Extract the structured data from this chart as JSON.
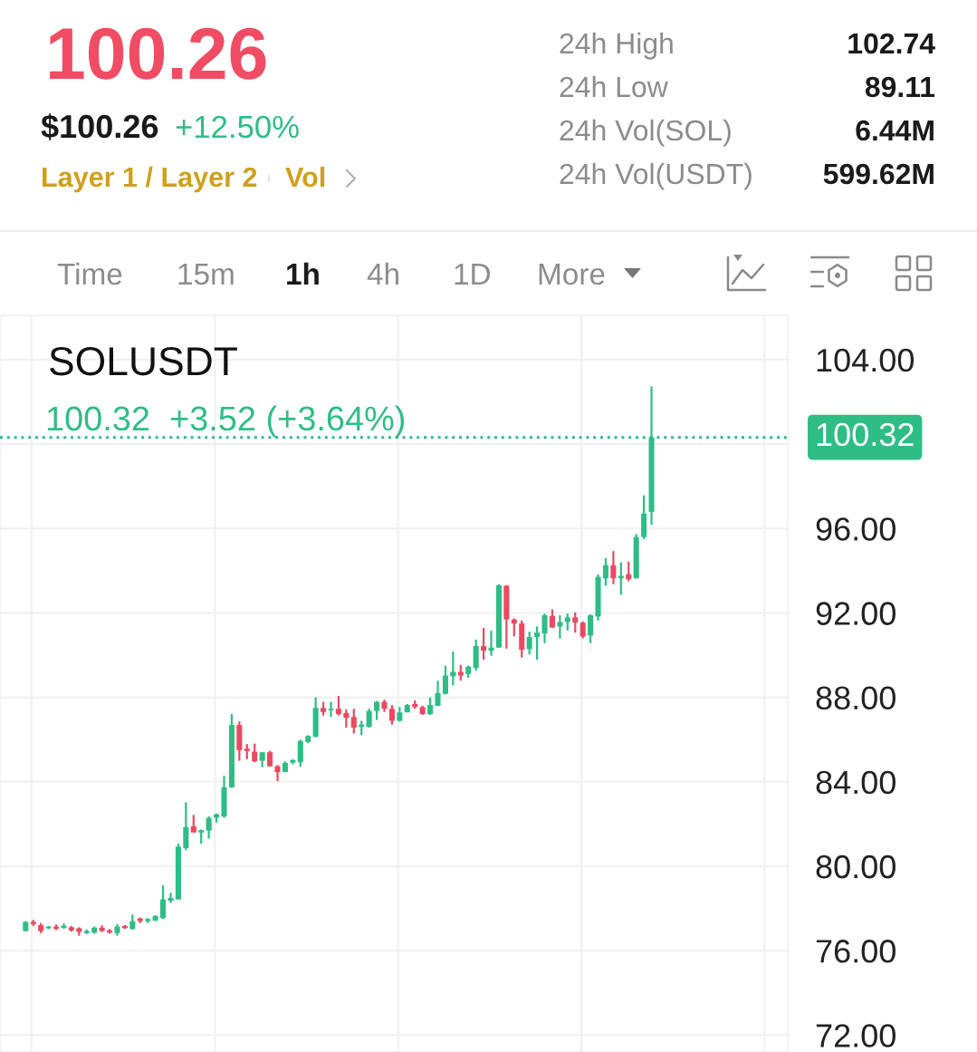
{
  "chart_data": {
    "type": "candlestick",
    "title": "SOLUSDT",
    "subtitle": "100.32  +3.52 (+3.64%)",
    "annotations": [
      "100.26",
      "$100.26",
      "+12.50%",
      "Layer 1 / Layer 2",
      "Vol",
      "24h High",
      "102.74",
      "24h Low",
      "89.11",
      "24h Vol(SOL)",
      "6.44M",
      "24h Vol(USDT)",
      "599.62M",
      "Time",
      "15m",
      "1h",
      "4h",
      "1D",
      "More"
    ],
    "categories": [
      null,
      null,
      null,
      null,
      null,
      null,
      null,
      null,
      null,
      null,
      null,
      null,
      null,
      null,
      null,
      null,
      null,
      null,
      null,
      null,
      null,
      null,
      null,
      null,
      null,
      null,
      null,
      null,
      null,
      null,
      null,
      null,
      null,
      null,
      null,
      null,
      null,
      null,
      null,
      null,
      null,
      null,
      null,
      null,
      null,
      null,
      null,
      null,
      null,
      null,
      null,
      null,
      null,
      null,
      null,
      null,
      null,
      null,
      null,
      null,
      null,
      null,
      null,
      null,
      null,
      null,
      null,
      null,
      null,
      null,
      null,
      null,
      null,
      null,
      null,
      null,
      null,
      null,
      null,
      null,
      null,
      null,
      null
    ],
    "ohlc": [
      [
        76.93,
        77.4,
        76.9,
        77.36
      ],
      [
        77.36,
        77.46,
        77.17,
        77.26
      ],
      [
        77.21,
        77.31,
        76.83,
        76.93
      ],
      [
        77.06,
        77.17,
        77.03,
        77.14
      ],
      [
        77.14,
        77.24,
        76.97,
        77.04
      ],
      [
        77.08,
        77.29,
        77.04,
        77.18
      ],
      [
        77.11,
        77.17,
        76.9,
        76.96
      ],
      [
        77.06,
        77.11,
        76.71,
        76.89
      ],
      [
        76.83,
        77.0,
        76.79,
        76.93
      ],
      [
        76.86,
        77.14,
        76.8,
        77.09
      ],
      [
        77.09,
        77.2,
        76.89,
        76.93
      ],
      [
        76.96,
        77.03,
        76.8,
        76.86
      ],
      [
        76.83,
        77.26,
        76.71,
        77.14
      ],
      [
        77.17,
        77.21,
        77.03,
        77.07
      ],
      [
        77.03,
        77.71,
        77.0,
        77.4
      ],
      [
        77.53,
        77.57,
        77.31,
        77.4
      ],
      [
        77.4,
        77.54,
        77.31,
        77.5
      ],
      [
        77.43,
        77.68,
        77.4,
        77.64
      ],
      [
        77.54,
        79.1,
        77.5,
        78.43
      ],
      [
        78.36,
        78.74,
        78.26,
        78.5
      ],
      [
        78.43,
        81.07,
        78.43,
        80.93
      ],
      [
        80.86,
        83.03,
        80.76,
        81.86
      ],
      [
        81.89,
        82.43,
        81.6,
        81.6
      ],
      [
        81.6,
        81.74,
        81.07,
        81.71
      ],
      [
        81.69,
        82.36,
        81.31,
        82.29
      ],
      [
        82.31,
        82.5,
        82.07,
        82.46
      ],
      [
        82.36,
        84.29,
        82.29,
        83.74
      ],
      [
        83.74,
        87.21,
        83.71,
        86.69
      ],
      [
        86.69,
        86.86,
        85.0,
        85.5
      ],
      [
        85.57,
        85.79,
        85.07,
        85.46
      ],
      [
        85.43,
        85.81,
        84.93,
        84.97
      ],
      [
        85.0,
        85.4,
        84.69,
        85.4
      ],
      [
        85.4,
        85.47,
        84.71,
        84.74
      ],
      [
        84.74,
        84.79,
        84.03,
        84.46
      ],
      [
        84.46,
        84.97,
        84.46,
        84.89
      ],
      [
        84.91,
        85.07,
        84.83,
        85.03
      ],
      [
        84.93,
        86.0,
        84.71,
        85.93
      ],
      [
        85.89,
        86.21,
        85.83,
        86.17
      ],
      [
        86.14,
        88.0,
        86.11,
        87.5
      ],
      [
        87.5,
        87.79,
        87.14,
        87.31
      ],
      [
        87.4,
        87.79,
        87.07,
        87.46
      ],
      [
        87.46,
        88.07,
        87.14,
        87.21
      ],
      [
        87.26,
        87.43,
        86.57,
        87.03
      ],
      [
        87.07,
        87.46,
        86.29,
        86.57
      ],
      [
        86.6,
        86.89,
        86.21,
        86.71
      ],
      [
        86.6,
        87.46,
        86.57,
        87.36
      ],
      [
        87.36,
        87.83,
        86.93,
        87.79
      ],
      [
        87.79,
        87.89,
        87.31,
        87.46
      ],
      [
        87.46,
        87.64,
        86.71,
        86.89
      ],
      [
        86.89,
        87.54,
        86.86,
        87.29
      ],
      [
        87.29,
        87.69,
        87.29,
        87.64
      ],
      [
        87.69,
        87.86,
        87.46,
        87.54
      ],
      [
        87.54,
        87.61,
        87.17,
        87.21
      ],
      [
        87.21,
        88.0,
        87.17,
        87.64
      ],
      [
        87.6,
        88.79,
        87.6,
        88.21
      ],
      [
        88.17,
        89.5,
        88.14,
        89.03
      ],
      [
        89.0,
        90.17,
        88.57,
        89.21
      ],
      [
        89.21,
        89.54,
        88.79,
        89.03
      ],
      [
        89.11,
        89.5,
        88.93,
        89.46
      ],
      [
        89.4,
        90.74,
        89.26,
        90.43
      ],
      [
        90.43,
        91.29,
        89.79,
        90.21
      ],
      [
        90.21,
        91.17,
        89.97,
        90.36
      ],
      [
        90.36,
        93.36,
        90.36,
        93.31
      ],
      [
        93.29,
        93.31,
        90.31,
        91.69
      ],
      [
        91.69,
        91.74,
        90.89,
        91.5
      ],
      [
        91.5,
        91.64,
        89.89,
        90.26
      ],
      [
        90.29,
        91.11,
        90.03,
        90.86
      ],
      [
        90.86,
        91.36,
        89.79,
        91.07
      ],
      [
        91.03,
        91.97,
        90.57,
        91.89
      ],
      [
        91.86,
        92.17,
        91.29,
        91.31
      ],
      [
        91.36,
        91.89,
        90.79,
        91.57
      ],
      [
        91.57,
        91.97,
        91.17,
        91.79
      ],
      [
        91.79,
        92.03,
        91.07,
        91.54
      ],
      [
        91.54,
        91.6,
        90.79,
        90.89
      ],
      [
        90.93,
        91.93,
        90.57,
        91.89
      ],
      [
        91.83,
        93.83,
        91.64,
        93.71
      ],
      [
        93.64,
        94.6,
        93.29,
        94.26
      ],
      [
        94.26,
        94.93,
        93.36,
        93.64
      ],
      [
        93.64,
        94.4,
        92.86,
        93.76
      ],
      [
        93.83,
        94.43,
        93.5,
        93.6
      ],
      [
        93.64,
        95.74,
        93.64,
        95.6
      ],
      [
        95.6,
        97.57,
        95.5,
        96.71
      ],
      [
        96.79,
        102.74,
        96.17,
        100.32
      ]
    ],
    "colors": [
      "#2ebd85",
      "#ea4961",
      "#ea4961",
      "#2ebd85",
      "#ea4961",
      "#2ebd85",
      "#ea4961",
      "#ea4961",
      "#2ebd85",
      "#2ebd85",
      "#ea4961",
      "#ea4961",
      "#2ebd85",
      "#ea4961",
      "#2ebd85",
      "#ea4961",
      "#2ebd85",
      "#2ebd85",
      "#2ebd85",
      "#2ebd85",
      "#2ebd85",
      "#2ebd85",
      "#ea4961",
      "#2ebd85",
      "#2ebd85",
      "#2ebd85",
      "#2ebd85",
      "#2ebd85",
      "#ea4961",
      "#ea4961",
      "#ea4961",
      "#2ebd85",
      "#ea4961",
      "#ea4961",
      "#2ebd85",
      "#2ebd85",
      "#2ebd85",
      "#2ebd85",
      "#2ebd85",
      "#ea4961",
      "#2ebd85",
      "#ea4961",
      "#ea4961",
      "#ea4961",
      "#2ebd85",
      "#2ebd85",
      "#2ebd85",
      "#ea4961",
      "#ea4961",
      "#2ebd85",
      "#2ebd85",
      "#ea4961",
      "#ea4961",
      "#2ebd85",
      "#2ebd85",
      "#2ebd85",
      "#2ebd85",
      "#ea4961",
      "#2ebd85",
      "#2ebd85",
      "#ea4961",
      "#2ebd85",
      "#2ebd85",
      "#ea4961",
      "#ea4961",
      "#ea4961",
      "#2ebd85",
      "#2ebd85",
      "#2ebd85",
      "#ea4961",
      "#2ebd85",
      "#2ebd85",
      "#ea4961",
      "#ea4961",
      "#2ebd85",
      "#2ebd85",
      "#2ebd85",
      "#ea4961",
      "#2ebd85",
      "#ea4961",
      "#2ebd85",
      "#2ebd85",
      "#2ebd85"
    ],
    "ylim": [
      71.2,
      106.1
    ],
    "yticks": [
      {
        "value": 72,
        "label": "72.00"
      },
      {
        "value": 76,
        "label": "76.00"
      },
      {
        "value": 80,
        "label": "80.00"
      },
      {
        "value": 84,
        "label": "84.00"
      },
      {
        "value": 88,
        "label": "88.00"
      },
      {
        "value": 92,
        "label": "92.00"
      },
      {
        "value": 96,
        "label": "96.00"
      },
      {
        "value": 100,
        "label": null
      },
      {
        "value": 104,
        "label": "104.00"
      }
    ],
    "grid": true,
    "tick_labels": "y",
    "ref_lines": [
      {
        "axis": "y",
        "value": 100.32,
        "label": "100.32",
        "color": "#2ebd85",
        "line_style": "dotted"
      }
    ]
  }
}
